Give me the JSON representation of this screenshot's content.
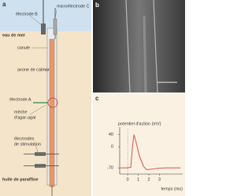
{
  "panel_a": {
    "letter": "a",
    "electrode_b": "électrode B",
    "microelectrode_c": "microélectrode C",
    "sea_water": "eau de mer",
    "cannula": "canule",
    "axon": "axone de calmar",
    "electrode_a": "électrode A",
    "wick": [
      "mèche",
      "d'agar-agar"
    ],
    "stimulation": [
      "électrodes",
      "de stimulation"
    ],
    "paraffin": "huile de paraffine"
  },
  "panel_b": {
    "letter": "b"
  },
  "panel_c": {
    "letter": "c",
    "type": "line",
    "ylabel": "potentiel d'action (mV)",
    "xlabel": "temps (ms)",
    "color": "#d9534f",
    "ylim": [
      -80,
      60
    ],
    "yticks": [
      40,
      0,
      -70
    ],
    "xlim": [
      -0.75,
      5.2
    ],
    "xticks": [
      0,
      1,
      2,
      3
    ],
    "x": [
      -0.7,
      0,
      0.3,
      0.45,
      0.6,
      0.8,
      1.1,
      1.5,
      1.8,
      2.3,
      3,
      3.6,
      5
    ],
    "y": [
      -70,
      -70,
      -68,
      0,
      40,
      15,
      -30,
      -65,
      -76,
      -74,
      -71,
      -70,
      -70
    ]
  }
}
